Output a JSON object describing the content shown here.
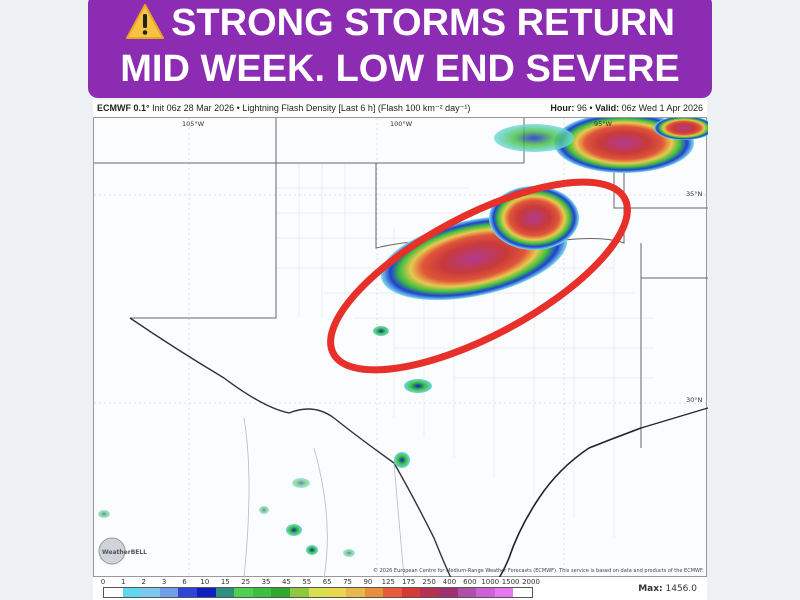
{
  "banner": {
    "icon": "warning-icon",
    "line1": "STRONG STORMS RETURN",
    "line2": "MID WEEK. LOW END SEVERE",
    "color": "#8b2cb3"
  },
  "map_header": {
    "model": "ECMWF 0.1°",
    "description": "Init 06z 28 Mar 2026 • Lightning Flash Density [Last 6 h] (Flash 100 km⁻² day⁻¹)",
    "hour_label": "Hour:",
    "hour": "96",
    "valid_label": "Valid:",
    "valid": "06z Wed 1 Apr 2026"
  },
  "map": {
    "lon_labels": [
      "105°W",
      "100°W",
      "95°W"
    ],
    "lat_labels": [
      "35°N",
      "30°N"
    ],
    "copyright": "© 2026 European Centre for Medium-Range Weather Forecasts (ECMWF). This service is based on data and products of the ECMWF.",
    "watermark": "WeatherBELL",
    "annotation_color": "#e8302a"
  },
  "legend": {
    "ticks": [
      "0",
      "1",
      "2",
      "3",
      "6",
      "10",
      "15",
      "25",
      "35",
      "45",
      "55",
      "65",
      "75",
      "90",
      "125",
      "175",
      "250",
      "400",
      "600",
      "1000",
      "1500",
      "2000"
    ],
    "colors": [
      "#ffffff",
      "#5fd7ee",
      "#7fc8f0",
      "#6f9fe8",
      "#2f45d8",
      "#1020c0",
      "#2f8f7f",
      "#4fd04f",
      "#3fbf3f",
      "#2fa82f",
      "#8fc83f",
      "#d8e04f",
      "#e8d84f",
      "#e8b84f",
      "#e88f3f",
      "#e85a3a",
      "#d83838",
      "#b8304f",
      "#a0306f",
      "#b04fa8",
      "#d060d8",
      "#e878f0",
      "#ffffff"
    ],
    "max_label": "Max:",
    "max_value": "1456.0"
  }
}
